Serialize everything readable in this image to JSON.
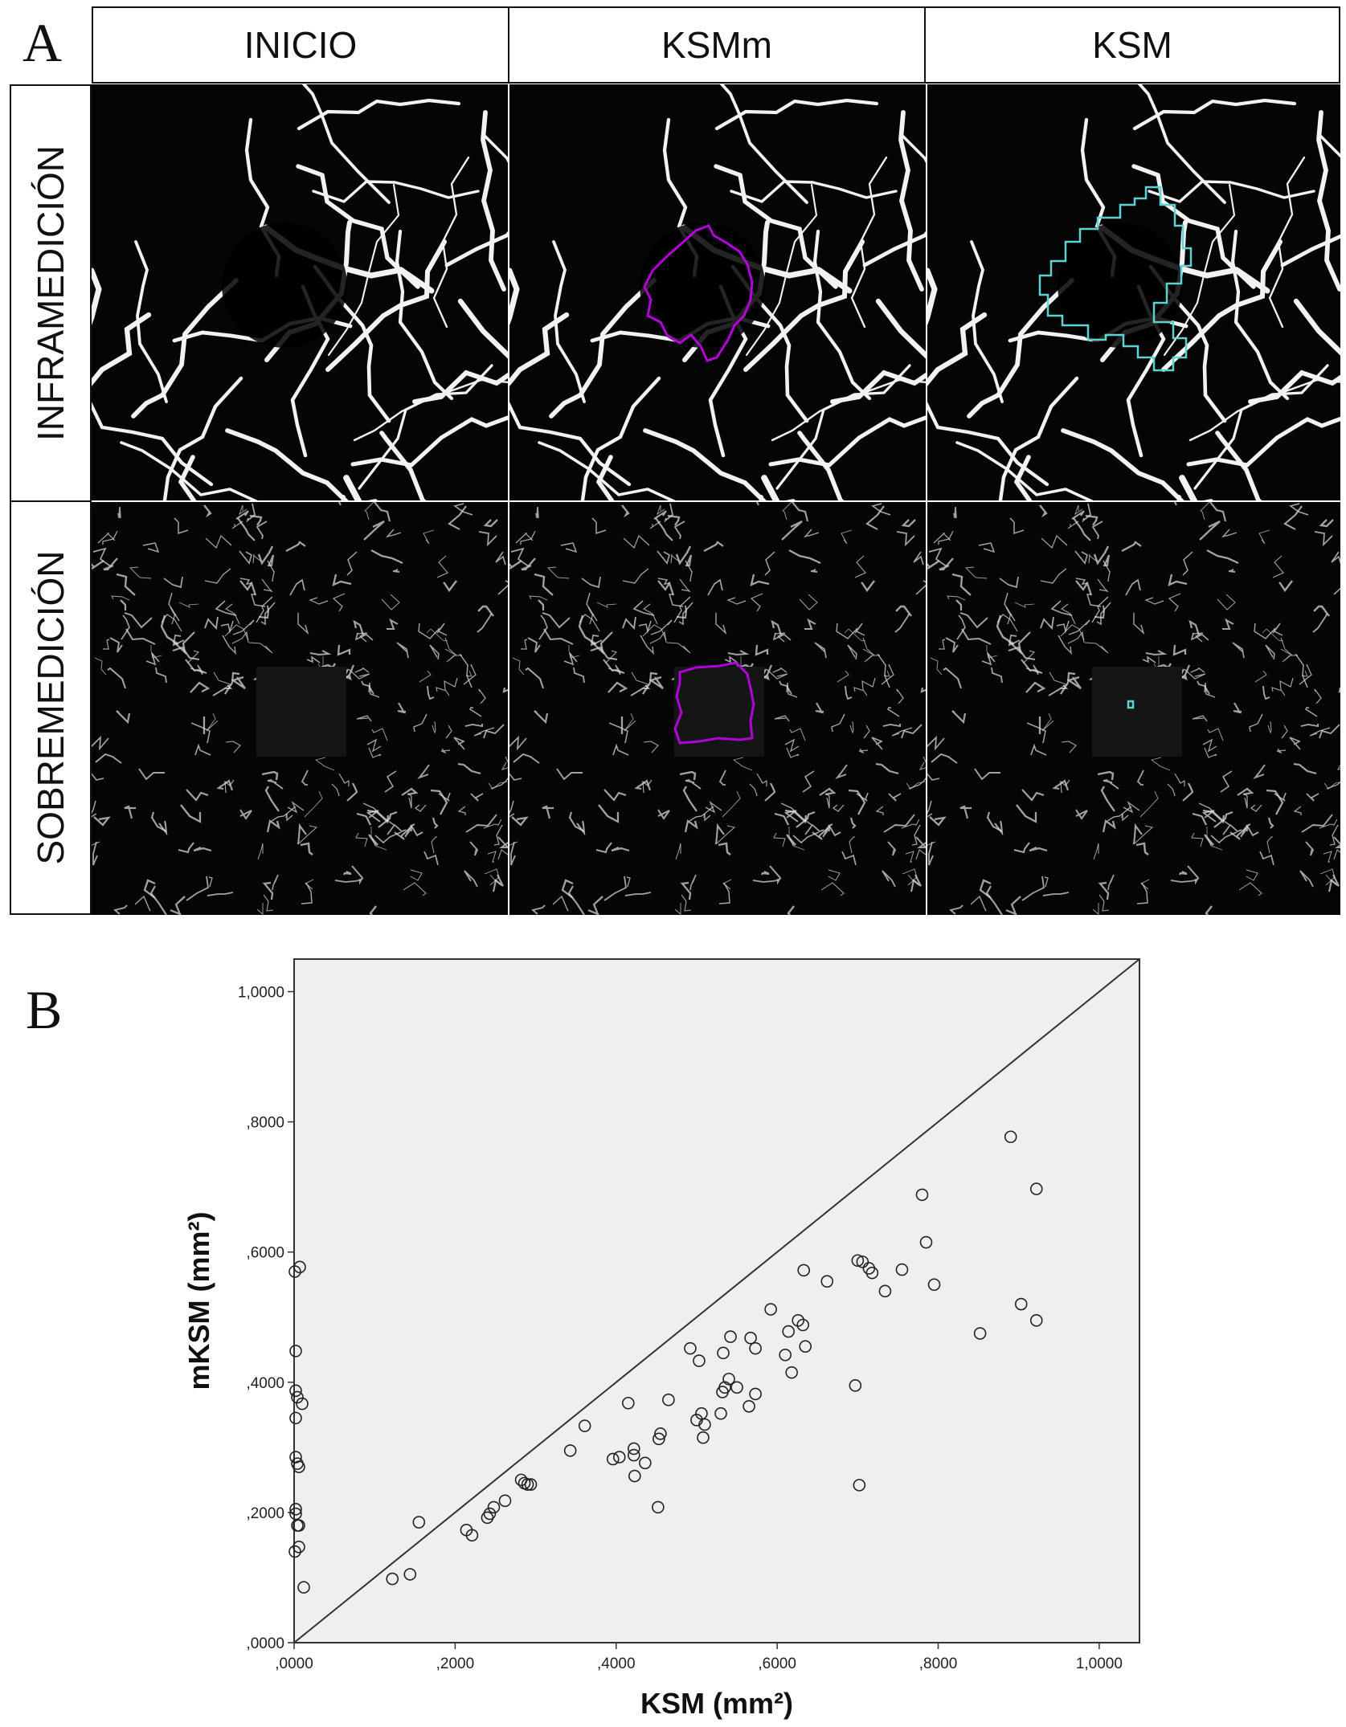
{
  "panel_a": {
    "letter": "A",
    "columns": [
      "INICIO",
      "KSMm",
      "KSM"
    ],
    "rows": [
      "INFRAMEDICIÓN",
      "SOBREMEDICIÓN"
    ],
    "colors": {
      "ksmm_outline": "#b100d8",
      "ksm_outline": "#5fd3d3",
      "vessel": "#f2f2f2",
      "background": "#050505"
    }
  },
  "panel_b": {
    "letter": "B"
  },
  "chart_data": {
    "type": "scatter",
    "title": "",
    "xlabel": "KSM (mm²)",
    "ylabel": "mKSM (mm²)",
    "xlim": [
      0,
      1.05
    ],
    "ylim": [
      0,
      1.05
    ],
    "xticks": [
      ",0000",
      ",2000",
      ",4000",
      ",6000",
      ",8000",
      "1,0000"
    ],
    "yticks": [
      ",0000",
      ",2000",
      ",4000",
      ",6000",
      ",8000",
      "1,0000"
    ],
    "reference_line": "y = x",
    "plot_background": "#efefef",
    "points": [
      [
        0.001,
        0.57
      ],
      [
        0.007,
        0.577
      ],
      [
        0.002,
        0.448
      ],
      [
        0.002,
        0.387
      ],
      [
        0.004,
        0.377
      ],
      [
        0.01,
        0.367
      ],
      [
        0.002,
        0.345
      ],
      [
        0.002,
        0.285
      ],
      [
        0.004,
        0.275
      ],
      [
        0.006,
        0.27
      ],
      [
        0.002,
        0.205
      ],
      [
        0.002,
        0.198
      ],
      [
        0.004,
        0.18
      ],
      [
        0.006,
        0.18
      ],
      [
        0.006,
        0.147
      ],
      [
        0.001,
        0.14
      ],
      [
        0.012,
        0.085
      ],
      [
        0.122,
        0.098
      ],
      [
        0.144,
        0.105
      ],
      [
        0.155,
        0.185
      ],
      [
        0.214,
        0.173
      ],
      [
        0.221,
        0.165
      ],
      [
        0.24,
        0.192
      ],
      [
        0.243,
        0.198
      ],
      [
        0.248,
        0.208
      ],
      [
        0.262,
        0.218
      ],
      [
        0.282,
        0.25
      ],
      [
        0.286,
        0.245
      ],
      [
        0.29,
        0.243
      ],
      [
        0.294,
        0.243
      ],
      [
        0.343,
        0.295
      ],
      [
        0.361,
        0.333
      ],
      [
        0.396,
        0.282
      ],
      [
        0.404,
        0.285
      ],
      [
        0.415,
        0.368
      ],
      [
        0.422,
        0.298
      ],
      [
        0.422,
        0.288
      ],
      [
        0.423,
        0.256
      ],
      [
        0.436,
        0.276
      ],
      [
        0.452,
        0.208
      ],
      [
        0.453,
        0.313
      ],
      [
        0.455,
        0.321
      ],
      [
        0.465,
        0.373
      ],
      [
        0.492,
        0.452
      ],
      [
        0.5,
        0.342
      ],
      [
        0.503,
        0.433
      ],
      [
        0.506,
        0.352
      ],
      [
        0.508,
        0.315
      ],
      [
        0.51,
        0.335
      ],
      [
        0.53,
        0.352
      ],
      [
        0.532,
        0.385
      ],
      [
        0.533,
        0.445
      ],
      [
        0.535,
        0.392
      ],
      [
        0.54,
        0.405
      ],
      [
        0.542,
        0.47
      ],
      [
        0.55,
        0.392
      ],
      [
        0.565,
        0.363
      ],
      [
        0.567,
        0.468
      ],
      [
        0.573,
        0.452
      ],
      [
        0.573,
        0.382
      ],
      [
        0.592,
        0.512
      ],
      [
        0.61,
        0.442
      ],
      [
        0.614,
        0.478
      ],
      [
        0.618,
        0.415
      ],
      [
        0.626,
        0.495
      ],
      [
        0.632,
        0.488
      ],
      [
        0.633,
        0.572
      ],
      [
        0.635,
        0.455
      ],
      [
        0.662,
        0.555
      ],
      [
        0.697,
        0.395
      ],
      [
        0.7,
        0.587
      ],
      [
        0.702,
        0.242
      ],
      [
        0.706,
        0.585
      ],
      [
        0.714,
        0.575
      ],
      [
        0.718,
        0.568
      ],
      [
        0.734,
        0.54
      ],
      [
        0.755,
        0.573
      ],
      [
        0.78,
        0.688
      ],
      [
        0.785,
        0.615
      ],
      [
        0.795,
        0.55
      ],
      [
        0.852,
        0.475
      ],
      [
        0.89,
        0.777
      ],
      [
        0.903,
        0.52
      ],
      [
        0.922,
        0.697
      ],
      [
        0.922,
        0.495
      ]
    ]
  }
}
